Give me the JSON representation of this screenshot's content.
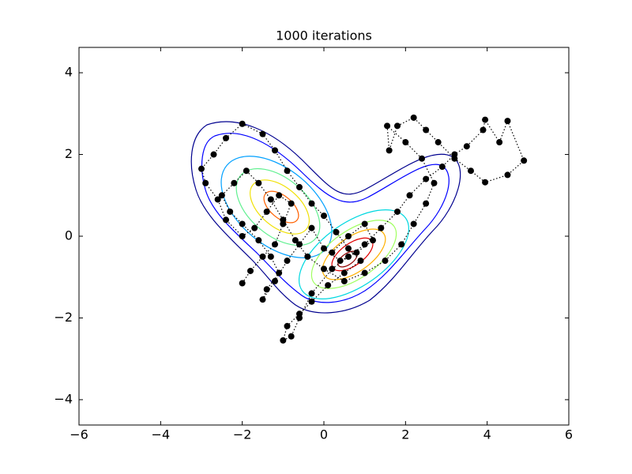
{
  "chart_data": {
    "type": "line",
    "title": "1000 iterations",
    "xlim": [
      -6,
      6
    ],
    "ylim": [
      -4.62,
      4.62
    ],
    "xticks": [
      {
        "value": -6,
        "label": "−6"
      },
      {
        "value": -4,
        "label": "−4"
      },
      {
        "value": -2,
        "label": "−2"
      },
      0,
      2,
      4,
      6
    ],
    "yticks": [
      {
        "value": -4,
        "label": "−4"
      },
      {
        "value": -2,
        "label": "−2"
      },
      0,
      2,
      4
    ],
    "color": "#000000",
    "x": [
      -2.0,
      -1.8,
      -1.5,
      -1.2,
      -1.0,
      -0.8,
      -1.1,
      -1.4,
      -1.7,
      -2.0,
      -2.4,
      -2.6,
      -2.9,
      -3.0,
      -2.7,
      -2.4,
      -2.0,
      -1.5,
      -1.2,
      -0.9,
      -0.6,
      -0.3,
      0.0,
      0.3,
      0.6,
      0.9,
      0.5,
      0.1,
      -0.3,
      -0.6,
      -0.9,
      -1.0,
      -0.8,
      -0.6,
      -0.3,
      0.2,
      0.6,
      1.0,
      1.4,
      1.8,
      2.1,
      2.5,
      2.9,
      3.2,
      3.5,
      3.9,
      3.95,
      4.3,
      4.5,
      4.9,
      4.5,
      3.95,
      3.6,
      3.2,
      2.8,
      2.5,
      2.2,
      1.8,
      1.6,
      1.55,
      2.0,
      2.4,
      2.7,
      2.5,
      2.2,
      1.9,
      1.5,
      1.0,
      0.5,
      0.0,
      -0.4,
      -0.7,
      -1.0,
      -1.3,
      -1.6,
      -1.9,
      -2.2,
      -2.5,
      -2.3,
      -2.0,
      -1.6,
      -1.3,
      -1.1,
      -1.4,
      -1.5,
      -1.2,
      -0.9,
      -0.6,
      -0.3,
      0.0,
      0.4,
      0.8,
      1.2,
      1.0,
      0.6,
      0.2
    ],
    "y": [
      -1.15,
      -0.85,
      -0.5,
      -0.2,
      0.3,
      0.8,
      1.0,
      0.6,
      0.2,
      0.0,
      0.4,
      0.9,
      1.3,
      1.65,
      2.0,
      2.4,
      2.75,
      2.5,
      2.1,
      1.6,
      1.2,
      0.8,
      0.5,
      0.1,
      -0.3,
      -0.6,
      -0.9,
      -1.2,
      -1.6,
      -1.9,
      -2.2,
      -2.55,
      -2.45,
      -2.0,
      -1.4,
      -0.8,
      -0.5,
      -0.2,
      0.2,
      0.6,
      1.0,
      1.4,
      1.7,
      2.0,
      2.2,
      2.6,
      2.85,
      2.3,
      2.82,
      1.85,
      1.5,
      1.32,
      1.6,
      1.9,
      2.3,
      2.6,
      2.9,
      2.7,
      2.1,
      2.7,
      2.3,
      1.9,
      1.3,
      0.8,
      0.3,
      -0.2,
      -0.6,
      -0.9,
      -1.1,
      -0.8,
      -0.5,
      -0.1,
      0.4,
      0.9,
      1.3,
      1.6,
      1.3,
      1.0,
      0.6,
      0.3,
      -0.1,
      -0.5,
      -0.9,
      -1.3,
      -1.55,
      -1.1,
      -0.6,
      -0.2,
      0.2,
      -0.3,
      -0.6,
      -0.4,
      -0.1,
      0.3,
      0.0,
      -0.4
    ]
  }
}
